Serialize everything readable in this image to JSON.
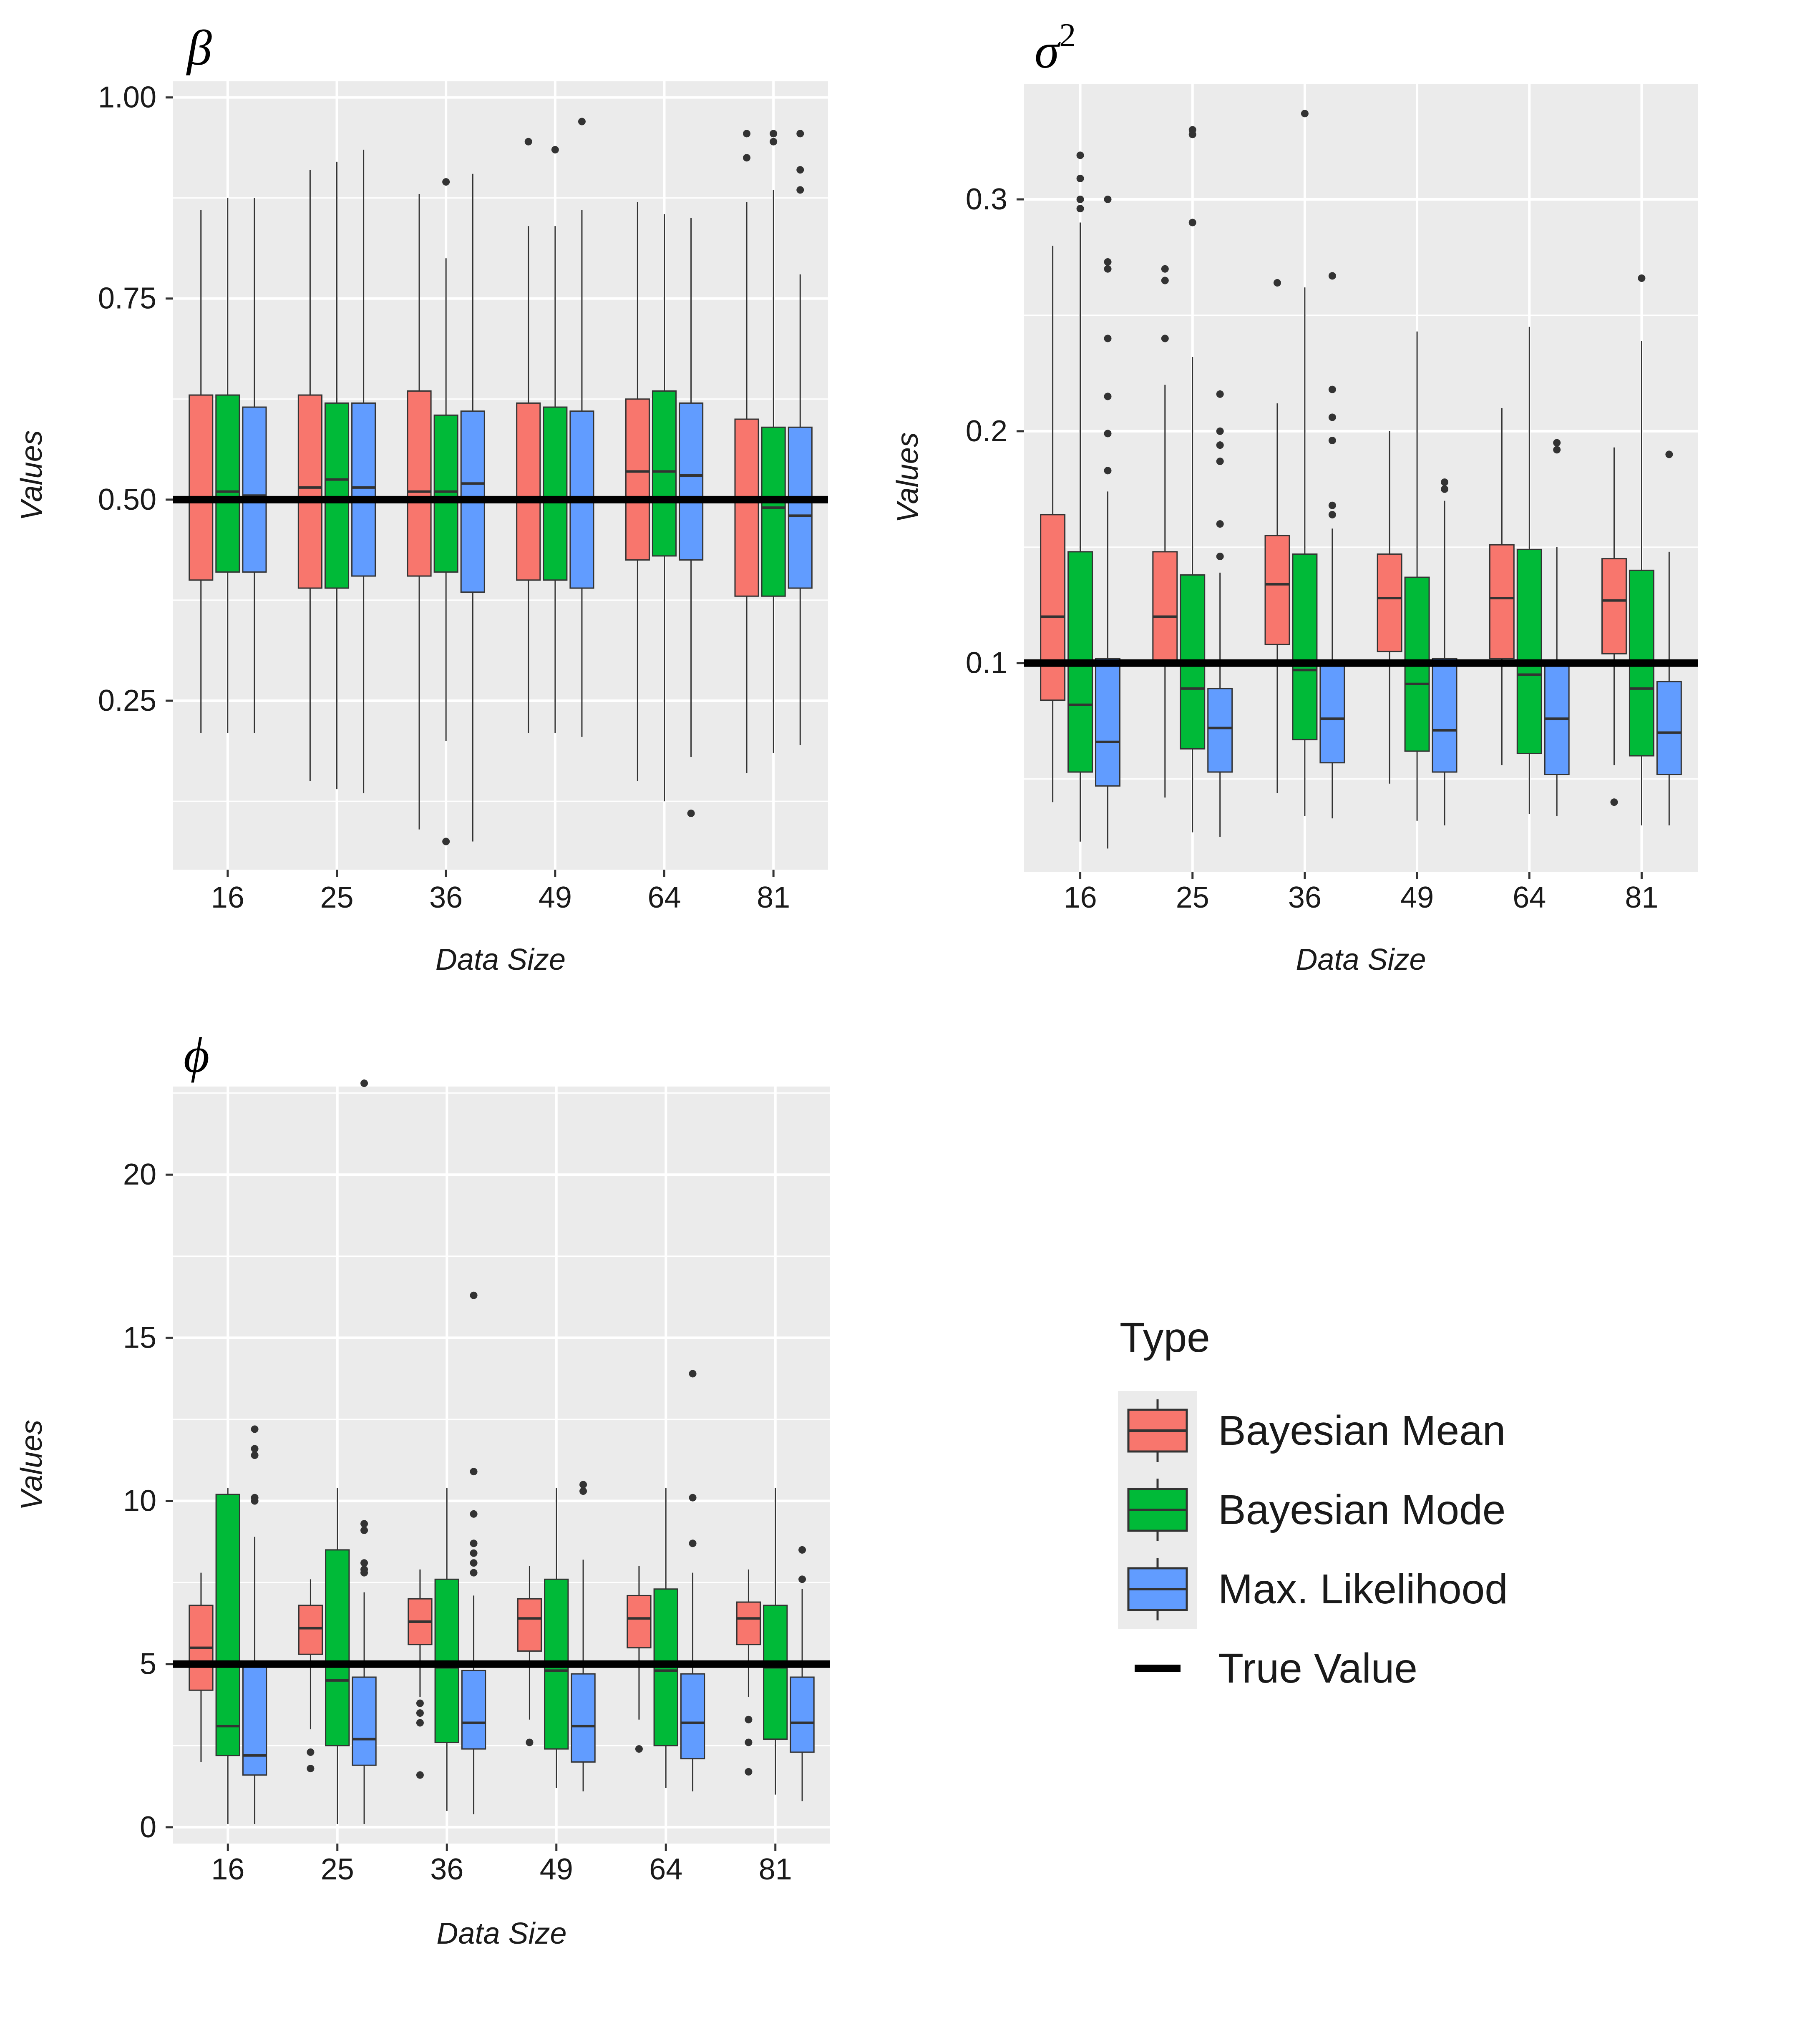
{
  "colors": {
    "panel_bg": "#EBEBEB",
    "grid": "#FFFFFF",
    "whisker": "#333333",
    "true_value": "#000000",
    "bayesian_mean": "#F8766D",
    "bayesian_mode": "#00BA38",
    "max_likelihood": "#619CFF"
  },
  "legend": {
    "title": "Type",
    "items": [
      {
        "label": "Bayesian Mean",
        "color": "#F8766D",
        "kind": "box"
      },
      {
        "label": "Bayesian Mode",
        "color": "#00BA38",
        "kind": "box"
      },
      {
        "label": "Max. Likelihood",
        "color": "#619CFF",
        "kind": "box"
      },
      {
        "label": "True Value",
        "color": "#000000",
        "kind": "line"
      }
    ]
  },
  "chart_data": [
    {
      "type": "boxplot",
      "title": "β",
      "title_sup": "",
      "xlabel": "Data Size",
      "ylabel": "Values",
      "categories": [
        "16",
        "25",
        "36",
        "49",
        "64",
        "81"
      ],
      "ylim": [
        0.04,
        1.02
      ],
      "yticks": [
        0.25,
        0.5,
        0.75,
        1.0
      ],
      "ytick_labels": [
        "0.25",
        "0.50",
        "0.75",
        "1.00"
      ],
      "true_value": 0.5,
      "series": [
        {
          "name": "Bayesian Mean",
          "boxes": [
            {
              "min": 0.21,
              "q1": 0.4,
              "median": 0.5,
              "q3": 0.63,
              "max": 0.86,
              "outliers": []
            },
            {
              "min": 0.15,
              "q1": 0.39,
              "median": 0.515,
              "q3": 0.63,
              "max": 0.91,
              "outliers": []
            },
            {
              "min": 0.09,
              "q1": 0.405,
              "median": 0.51,
              "q3": 0.635,
              "max": 0.88,
              "outliers": []
            },
            {
              "min": 0.21,
              "q1": 0.4,
              "median": 0.5,
              "q3": 0.62,
              "max": 0.84,
              "outliers": [
                0.945
              ]
            },
            {
              "min": 0.15,
              "q1": 0.425,
              "median": 0.535,
              "q3": 0.625,
              "max": 0.87,
              "outliers": []
            },
            {
              "min": 0.16,
              "q1": 0.38,
              "median": 0.5,
              "q3": 0.6,
              "max": 0.87,
              "outliers": [
                0.925,
                0.955
              ]
            }
          ]
        },
        {
          "name": "Bayesian Mode",
          "boxes": [
            {
              "min": 0.21,
              "q1": 0.41,
              "median": 0.51,
              "q3": 0.63,
              "max": 0.875,
              "outliers": []
            },
            {
              "min": 0.14,
              "q1": 0.39,
              "median": 0.525,
              "q3": 0.62,
              "max": 0.92,
              "outliers": []
            },
            {
              "min": 0.2,
              "q1": 0.41,
              "median": 0.51,
              "q3": 0.605,
              "max": 0.8,
              "outliers": [
                0.075,
                0.895
              ]
            },
            {
              "min": 0.21,
              "q1": 0.4,
              "median": 0.5,
              "q3": 0.615,
              "max": 0.84,
              "outliers": [
                0.935
              ]
            },
            {
              "min": 0.125,
              "q1": 0.43,
              "median": 0.535,
              "q3": 0.635,
              "max": 0.855,
              "outliers": []
            },
            {
              "min": 0.185,
              "q1": 0.38,
              "median": 0.49,
              "q3": 0.59,
              "max": 0.885,
              "outliers": [
                0.945,
                0.955
              ]
            }
          ]
        },
        {
          "name": "Max. Likelihood",
          "boxes": [
            {
              "min": 0.21,
              "q1": 0.41,
              "median": 0.505,
              "q3": 0.615,
              "max": 0.875,
              "outliers": []
            },
            {
              "min": 0.135,
              "q1": 0.405,
              "median": 0.515,
              "q3": 0.62,
              "max": 0.935,
              "outliers": []
            },
            {
              "min": 0.075,
              "q1": 0.385,
              "median": 0.52,
              "q3": 0.61,
              "max": 0.905,
              "outliers": []
            },
            {
              "min": 0.205,
              "q1": 0.39,
              "median": 0.5,
              "q3": 0.61,
              "max": 0.86,
              "outliers": [
                0.97
              ]
            },
            {
              "min": 0.18,
              "q1": 0.425,
              "median": 0.53,
              "q3": 0.62,
              "max": 0.85,
              "outliers": [
                0.11
              ]
            },
            {
              "min": 0.195,
              "q1": 0.39,
              "median": 0.48,
              "q3": 0.59,
              "max": 0.78,
              "outliers": [
                0.885,
                0.91,
                0.955
              ]
            }
          ]
        }
      ]
    },
    {
      "type": "boxplot",
      "title": "σ",
      "title_sup": "2",
      "xlabel": "Data Size",
      "ylabel": "Values",
      "categories": [
        "16",
        "25",
        "36",
        "49",
        "64",
        "81"
      ],
      "ylim": [
        0.01,
        0.35
      ],
      "yticks": [
        0.1,
        0.2,
        0.3
      ],
      "ytick_labels": [
        "0.1",
        "0.2",
        "0.3"
      ],
      "true_value": 0.1,
      "series": [
        {
          "name": "Bayesian Mean",
          "boxes": [
            {
              "min": 0.04,
              "q1": 0.084,
              "median": 0.12,
              "q3": 0.164,
              "max": 0.28,
              "outliers": []
            },
            {
              "min": 0.042,
              "q1": 0.1,
              "median": 0.12,
              "q3": 0.148,
              "max": 0.22,
              "outliers": [
                0.24,
                0.265,
                0.27
              ]
            },
            {
              "min": 0.044,
              "q1": 0.108,
              "median": 0.134,
              "q3": 0.155,
              "max": 0.212,
              "outliers": [
                0.264
              ]
            },
            {
              "min": 0.048,
              "q1": 0.105,
              "median": 0.128,
              "q3": 0.147,
              "max": 0.2,
              "outliers": []
            },
            {
              "min": 0.056,
              "q1": 0.102,
              "median": 0.128,
              "q3": 0.151,
              "max": 0.21,
              "outliers": []
            },
            {
              "min": 0.056,
              "q1": 0.104,
              "median": 0.127,
              "q3": 0.145,
              "max": 0.193,
              "outliers": [
                0.04
              ]
            }
          ]
        },
        {
          "name": "Bayesian Mode",
          "boxes": [
            {
              "min": 0.023,
              "q1": 0.053,
              "median": 0.082,
              "q3": 0.148,
              "max": 0.29,
              "outliers": [
                0.296,
                0.3,
                0.309,
                0.319
              ]
            },
            {
              "min": 0.027,
              "q1": 0.063,
              "median": 0.089,
              "q3": 0.138,
              "max": 0.232,
              "outliers": [
                0.29,
                0.328,
                0.33
              ]
            },
            {
              "min": 0.034,
              "q1": 0.067,
              "median": 0.097,
              "q3": 0.147,
              "max": 0.262,
              "outliers": [
                0.337
              ]
            },
            {
              "min": 0.032,
              "q1": 0.062,
              "median": 0.091,
              "q3": 0.137,
              "max": 0.243,
              "outliers": []
            },
            {
              "min": 0.035,
              "q1": 0.061,
              "median": 0.095,
              "q3": 0.149,
              "max": 0.245,
              "outliers": []
            },
            {
              "min": 0.03,
              "q1": 0.06,
              "median": 0.089,
              "q3": 0.14,
              "max": 0.239,
              "outliers": [
                0.266
              ]
            }
          ]
        },
        {
          "name": "Max. Likelihood",
          "boxes": [
            {
              "min": 0.02,
              "q1": 0.047,
              "median": 0.066,
              "q3": 0.102,
              "max": 0.174,
              "outliers": [
                0.183,
                0.199,
                0.215,
                0.24,
                0.27,
                0.273,
                0.3
              ]
            },
            {
              "min": 0.025,
              "q1": 0.053,
              "median": 0.072,
              "q3": 0.089,
              "max": 0.139,
              "outliers": [
                0.146,
                0.16,
                0.187,
                0.194,
                0.2,
                0.216
              ]
            },
            {
              "min": 0.033,
              "q1": 0.057,
              "median": 0.076,
              "q3": 0.101,
              "max": 0.158,
              "outliers": [
                0.164,
                0.168,
                0.196,
                0.206,
                0.218,
                0.267
              ]
            },
            {
              "min": 0.03,
              "q1": 0.053,
              "median": 0.071,
              "q3": 0.102,
              "max": 0.17,
              "outliers": [
                0.175,
                0.178
              ]
            },
            {
              "min": 0.034,
              "q1": 0.052,
              "median": 0.076,
              "q3": 0.101,
              "max": 0.15,
              "outliers": [
                0.192,
                0.195
              ]
            },
            {
              "min": 0.03,
              "q1": 0.052,
              "median": 0.07,
              "q3": 0.092,
              "max": 0.148,
              "outliers": [
                0.19
              ]
            }
          ]
        }
      ]
    },
    {
      "type": "boxplot",
      "title": "ϕ",
      "title_sup": "",
      "xlabel": "Data Size",
      "ylabel": "Values",
      "categories": [
        "16",
        "25",
        "36",
        "49",
        "64",
        "81"
      ],
      "ylim": [
        -0.5,
        22.7
      ],
      "yticks": [
        0,
        5,
        10,
        15,
        20
      ],
      "ytick_labels": [
        "0",
        "5",
        "10",
        "15",
        "20"
      ],
      "true_value": 5,
      "series": [
        {
          "name": "Bayesian Mean",
          "boxes": [
            {
              "min": 2.0,
              "q1": 4.2,
              "median": 5.5,
              "q3": 6.8,
              "max": 7.8,
              "outliers": []
            },
            {
              "min": 3.0,
              "q1": 5.3,
              "median": 6.1,
              "q3": 6.8,
              "max": 7.6,
              "outliers": [
                1.8,
                2.3
              ]
            },
            {
              "min": 4.0,
              "q1": 5.6,
              "median": 6.3,
              "q3": 7.0,
              "max": 7.9,
              "outliers": [
                1.6,
                3.2,
                3.5,
                3.8
              ]
            },
            {
              "min": 3.3,
              "q1": 5.4,
              "median": 6.4,
              "q3": 7.0,
              "max": 8.0,
              "outliers": [
                2.6
              ]
            },
            {
              "min": 3.3,
              "q1": 5.5,
              "median": 6.4,
              "q3": 7.1,
              "max": 8.0,
              "outliers": [
                2.4
              ]
            },
            {
              "min": 4.0,
              "q1": 5.6,
              "median": 6.4,
              "q3": 6.9,
              "max": 7.9,
              "outliers": [
                1.7,
                2.6,
                3.3
              ]
            }
          ]
        },
        {
          "name": "Bayesian Mode",
          "boxes": [
            {
              "min": 0.1,
              "q1": 2.2,
              "median": 3.1,
              "q3": 10.2,
              "max": 10.4,
              "outliers": []
            },
            {
              "min": 0.1,
              "q1": 2.5,
              "median": 4.5,
              "q3": 8.5,
              "max": 10.4,
              "outliers": []
            },
            {
              "min": 0.5,
              "q1": 2.6,
              "median": 4.9,
              "q3": 7.6,
              "max": 10.4,
              "outliers": []
            },
            {
              "min": 1.2,
              "q1": 2.4,
              "median": 4.8,
              "q3": 7.6,
              "max": 10.4,
              "outliers": []
            },
            {
              "min": 1.2,
              "q1": 2.5,
              "median": 4.8,
              "q3": 7.3,
              "max": 10.4,
              "outliers": []
            },
            {
              "min": 1.0,
              "q1": 2.7,
              "median": 4.9,
              "q3": 6.8,
              "max": 10.4,
              "outliers": []
            }
          ]
        },
        {
          "name": "Max. Likelihood",
          "boxes": [
            {
              "min": 0.1,
              "q1": 1.6,
              "median": 2.2,
              "q3": 5.0,
              "max": 8.9,
              "outliers": [
                10.0,
                10.1,
                11.4,
                11.6,
                12.2
              ]
            },
            {
              "min": 0.1,
              "q1": 1.9,
              "median": 2.7,
              "q3": 4.6,
              "max": 7.2,
              "outliers": [
                7.8,
                7.9,
                8.1,
                9.1,
                9.3,
                22.8
              ]
            },
            {
              "min": 0.4,
              "q1": 2.4,
              "median": 3.2,
              "q3": 4.8,
              "max": 7.1,
              "outliers": [
                7.8,
                8.1,
                8.4,
                8.7,
                9.6,
                10.9,
                16.3
              ]
            },
            {
              "min": 1.1,
              "q1": 2.0,
              "median": 3.1,
              "q3": 4.7,
              "max": 8.2,
              "outliers": [
                10.3,
                10.5
              ]
            },
            {
              "min": 1.1,
              "q1": 2.1,
              "median": 3.2,
              "q3": 4.7,
              "max": 7.8,
              "outliers": [
                8.7,
                10.1,
                13.9
              ]
            },
            {
              "min": 0.8,
              "q1": 2.3,
              "median": 3.2,
              "q3": 4.6,
              "max": 7.3,
              "outliers": [
                7.6,
                8.5
              ]
            }
          ]
        }
      ]
    }
  ]
}
